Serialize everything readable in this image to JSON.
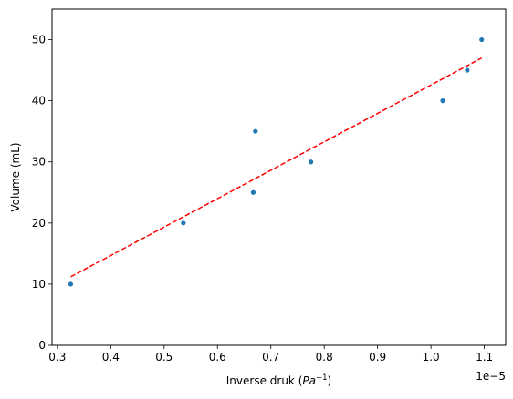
{
  "chart_data": {
    "type": "scatter",
    "title": "",
    "xlabel": "Inverse druk",
    "xlabel_unit_base": "Pa",
    "xlabel_unit_exp": "−1",
    "ylabel": "Volume (mL)",
    "x_offset_label": "1e−5",
    "xlim": [
      0.29,
      1.14
    ],
    "ylim": [
      0,
      55
    ],
    "x_ticks": [
      0.3,
      0.4,
      0.5,
      0.6,
      0.7,
      0.8,
      0.9,
      1.0,
      1.1
    ],
    "x_tick_labels": [
      "0.3",
      "0.4",
      "0.5",
      "0.6",
      "0.7",
      "0.8",
      "0.9",
      "1.0",
      "1.1"
    ],
    "y_ticks": [
      0,
      10,
      20,
      30,
      40,
      50
    ],
    "y_tick_labels": [
      "0",
      "10",
      "20",
      "30",
      "40",
      "50"
    ],
    "grid": false,
    "series": [
      {
        "type": "scatter",
        "color": "#1f77b4",
        "points": [
          {
            "x": 0.325,
            "y": 10
          },
          {
            "x": 0.536,
            "y": 20
          },
          {
            "x": 0.667,
            "y": 25
          },
          {
            "x": 0.671,
            "y": 35
          },
          {
            "x": 0.775,
            "y": 30
          },
          {
            "x": 1.022,
            "y": 40
          },
          {
            "x": 1.068,
            "y": 45
          },
          {
            "x": 1.095,
            "y": 50
          }
        ]
      },
      {
        "type": "line",
        "style": "dashed",
        "color": "#ff0000",
        "points": [
          {
            "x": 0.325,
            "y": 11.2
          },
          {
            "x": 1.095,
            "y": 47.0
          }
        ]
      }
    ]
  }
}
